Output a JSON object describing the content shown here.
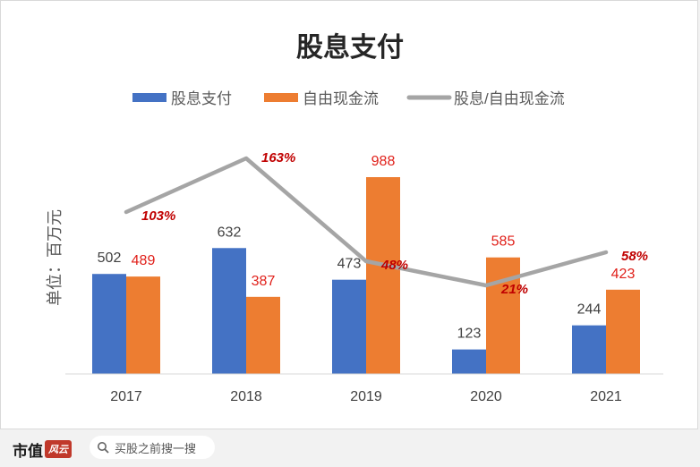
{
  "chart_data": {
    "type": "bar",
    "title": "股息支付",
    "ylabel": "单位：百万元",
    "categories": [
      "2017",
      "2018",
      "2019",
      "2020",
      "2021"
    ],
    "series": [
      {
        "name": "股息支付",
        "type": "bar",
        "color": "#4472c4",
        "values": [
          502,
          632,
          473,
          123,
          244
        ],
        "labels": [
          "502",
          "632",
          "473",
          "123",
          "244"
        ]
      },
      {
        "name": "自由现金流",
        "type": "bar",
        "color": "#ed7d31",
        "values": [
          489,
          387,
          988,
          585,
          423
        ],
        "labels": [
          "489",
          "387",
          "988",
          "585",
          "423"
        ]
      },
      {
        "name": "股息/自由现金流",
        "type": "line",
        "color": "#a5a5a5",
        "values": [
          103,
          163,
          48,
          21,
          58
        ],
        "labels": [
          "103%",
          "163%",
          "48%",
          "21%",
          "58%"
        ]
      }
    ],
    "ylim_bars": [
      0,
      1000
    ],
    "grid": false,
    "legend": "top"
  },
  "footer": {
    "brand": "市值",
    "brand_mark": "风云",
    "search_placeholder": "买股之前搜一搜"
  }
}
